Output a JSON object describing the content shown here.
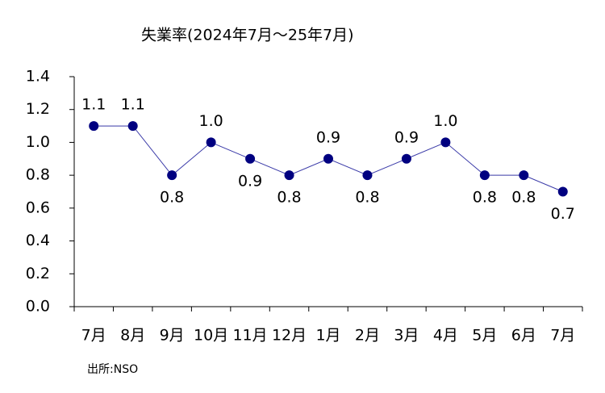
{
  "chart_data": {
    "type": "line",
    "title": "失業率(2024年7月～25年7月)",
    "categories": [
      "7月",
      "8月",
      "9月",
      "10月",
      "11月",
      "12月",
      "1月",
      "2月",
      "3月",
      "4月",
      "5月",
      "6月",
      "7月"
    ],
    "series": [
      {
        "color": "#000080",
        "values": [
          1.1,
          1.1,
          0.8,
          1.0,
          0.9,
          0.8,
          0.9,
          0.8,
          0.9,
          1.0,
          0.8,
          0.8,
          0.7
        ],
        "value_labels": [
          "1.1",
          "1.1",
          "0.8",
          "1.0",
          "0.9",
          "0.8",
          "0.9",
          "0.8",
          "0.9",
          "1.0",
          "0.8",
          "0.8",
          "0.7"
        ]
      }
    ],
    "ylim": [
      0,
      1.4
    ],
    "yticks": [
      {
        "value": 0,
        "label": "0.0"
      },
      0.2,
      0.4,
      0.6,
      0.8,
      {
        "value": 1,
        "label": "1.0"
      },
      1.2,
      1.4
    ],
    "grid": false,
    "source": "出所:NSO"
  }
}
